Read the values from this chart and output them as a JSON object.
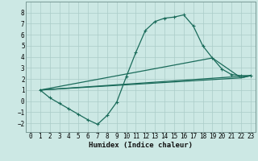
{
  "xlabel": "Humidex (Indice chaleur)",
  "bg_color": "#cce8e4",
  "grid_color": "#aaccc8",
  "line_color": "#1a6b5a",
  "spine_color": "#7a9a96",
  "xlim": [
    -0.5,
    23.5
  ],
  "ylim": [
    -2.8,
    9.0
  ],
  "yticks": [
    -2,
    -1,
    0,
    1,
    2,
    3,
    4,
    5,
    6,
    7,
    8
  ],
  "xticks": [
    0,
    1,
    2,
    3,
    4,
    5,
    6,
    7,
    8,
    9,
    10,
    11,
    12,
    13,
    14,
    15,
    16,
    17,
    18,
    19,
    20,
    21,
    22,
    23
  ],
  "line1_x": [
    1,
    2,
    3,
    4,
    5,
    6,
    7,
    8,
    9,
    10,
    11,
    12,
    13,
    14,
    15,
    16,
    17,
    18,
    19,
    20,
    21,
    22,
    23
  ],
  "line1_y": [
    1.0,
    0.3,
    -0.2,
    -0.7,
    -1.2,
    -1.7,
    -2.1,
    -1.3,
    -0.1,
    2.2,
    4.4,
    6.4,
    7.2,
    7.5,
    7.6,
    7.8,
    6.8,
    5.0,
    3.9,
    2.9,
    2.4,
    2.3,
    2.3
  ],
  "line2_x": [
    1,
    22,
    23
  ],
  "line2_y": [
    1.0,
    2.1,
    2.3
  ],
  "line3_x": [
    1,
    19,
    22,
    23
  ],
  "line3_y": [
    1.0,
    3.9,
    2.1,
    2.3
  ],
  "line4_x": [
    1,
    23
  ],
  "line4_y": [
    1.0,
    2.3
  ],
  "tick_fontsize": 5.5,
  "xlabel_fontsize": 6.5
}
